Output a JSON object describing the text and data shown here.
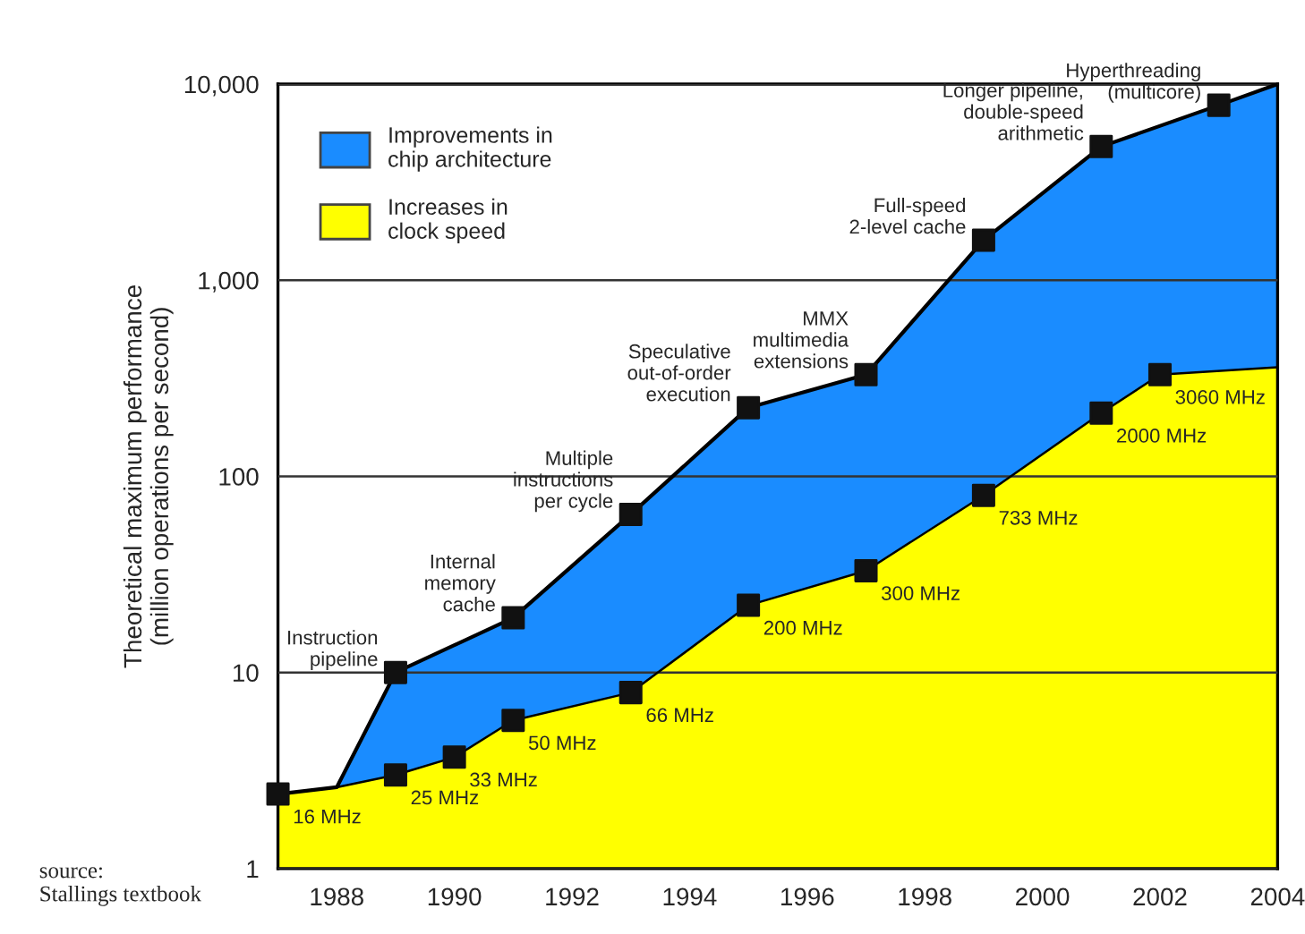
{
  "chart_data": {
    "type": "area",
    "ylabel": "Theoretical maximum performance\n(million operations per second)",
    "log": "y",
    "grid": "y",
    "legend": "top left",
    "xlim": [
      1987,
      2004
    ],
    "xticks": [
      1988,
      1990,
      1992,
      1994,
      1996,
      1998,
      2000,
      2002,
      2004
    ],
    "ylim": [
      1,
      10000
    ],
    "yticks": [
      {
        "value": 1,
        "label": "1"
      },
      {
        "value": 10,
        "label": "10"
      },
      {
        "value": 100,
        "label": "100"
      },
      {
        "value": 1000,
        "label": "1,000"
      },
      {
        "value": 10000,
        "label": "10,000"
      }
    ],
    "series": [
      {
        "name": "Improvements in\nchip architecture",
        "color": "#1a8cff",
        "x": [
          1987,
          1988,
          1989,
          1991,
          1993,
          1995,
          1997,
          1999,
          2001,
          2003,
          2004
        ],
        "values": [
          2.4,
          2.6,
          10,
          19,
          64,
          224,
          330,
          1600,
          4800,
          7800,
          10000
        ]
      },
      {
        "name": "Increases in\nclock speed",
        "color": "#ffff00",
        "x": [
          1987,
          1988,
          1989,
          1990,
          1991,
          1993,
          1995,
          1997,
          1999,
          2001,
          2002,
          2004
        ],
        "values": [
          2.4,
          2.6,
          3.0,
          3.7,
          5.7,
          7.9,
          22,
          33,
          80,
          210,
          330,
          360
        ]
      },
      {
        "type": "scatter",
        "marker": "square",
        "color": "#111111",
        "x": [
          1987,
          1989,
          1991,
          1993,
          1995,
          1997,
          1999,
          2001,
          2003,
          1989,
          1990,
          1991,
          1993,
          1995,
          1997,
          1999,
          2001,
          2002
        ],
        "values": [
          2.4,
          10,
          19,
          64,
          224,
          330,
          1600,
          4800,
          7800,
          3.0,
          3.7,
          5.7,
          7.9,
          22,
          33,
          80,
          210,
          330
        ]
      }
    ],
    "annotations": [
      {
        "text": "16 MHz",
        "x": 1987,
        "y": 2.4
      },
      {
        "text": "25 MHz",
        "x": 1989,
        "y": 3.0
      },
      {
        "text": "33 MHz",
        "x": 1990,
        "y": 3.7
      },
      {
        "text": "50 MHz",
        "x": 1991,
        "y": 5.7
      },
      {
        "text": "66 MHz",
        "x": 1993,
        "y": 7.9
      },
      {
        "text": "200 MHz",
        "x": 1995,
        "y": 22
      },
      {
        "text": "300 MHz",
        "x": 1997,
        "y": 33
      },
      {
        "text": "733 MHz",
        "x": 1999,
        "y": 80
      },
      {
        "text": "2000 MHz",
        "x": 2001,
        "y": 210
      },
      {
        "text": "3060 MHz",
        "x": 2002,
        "y": 330
      },
      {
        "text": "Instruction\npipeline",
        "x": 1989,
        "y": 10
      },
      {
        "text": "Internal\nmemory\ncache",
        "x": 1991,
        "y": 19
      },
      {
        "text": "Multiple\ninstructions\nper cycle",
        "x": 1993,
        "y": 64
      },
      {
        "text": "Speculative\nout-of-order\nexecution",
        "x": 1995,
        "y": 224
      },
      {
        "text": "MMX\nmultimedia\nextensions",
        "x": 1997,
        "y": 330
      },
      {
        "text": "Full-speed\n2-level cache",
        "x": 1999,
        "y": 1600
      },
      {
        "text": "Longer pipeline,\ndouble-speed\narithmetic",
        "x": 2001,
        "y": 4800
      },
      {
        "text": "Hyperthreading\n(multicore)",
        "x": 2003,
        "y": 7800
      },
      "source:\nStallings textbook"
    ]
  }
}
